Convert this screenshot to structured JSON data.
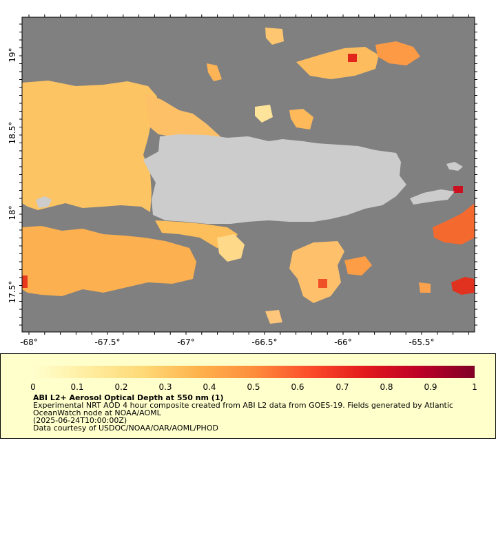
{
  "map": {
    "background_color": "#808080",
    "land_color": "#cccccc",
    "lat_ticks": [
      "19°",
      "18.5°",
      "18°",
      "17.5°"
    ],
    "lon_ticks": [
      "-68°",
      "-67.5°",
      "-67°",
      "-66.5°",
      "-66°",
      "-65.5°"
    ],
    "features": [
      "Puerto Rico",
      "Vieques",
      "Culebra",
      "Isla de Mona"
    ]
  },
  "colorbar": {
    "min": 0,
    "max": 1,
    "tick_labels": [
      "0",
      "0.1",
      "0.2",
      "0.3",
      "0.4",
      "0.5",
      "0.6",
      "0.7",
      "0.8",
      "0.9",
      "1"
    ],
    "colors": [
      "#ffffcc",
      "#ffeda0",
      "#fed976",
      "#feb24c",
      "#fd8d3c",
      "#fc4e2a",
      "#e31a1c",
      "#bd0026",
      "#800026"
    ]
  },
  "legend": {
    "title": "ABI L2+ Aerosol Optical Depth at 550 nm (1)",
    "description_line1": "Experimental NRT AOD 4 hour composite created from ABI L2 data from GOES-19. Fields generated by Atlantic",
    "description_line2": "OceanWatch node at NOAA/AOML",
    "date": "(2025-06-24T10:00:00Z)",
    "credit": "Data courtesy of USDOC/NOAA/OAR/AOML/PHOD",
    "background_color": "#ffffcc"
  }
}
